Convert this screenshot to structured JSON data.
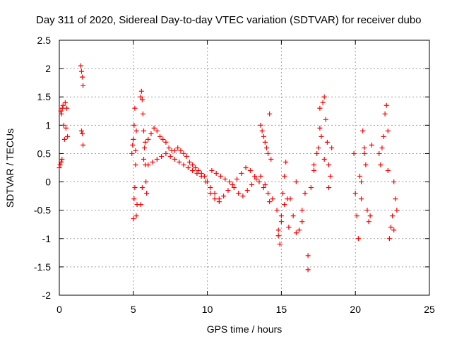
{
  "chart_data": {
    "type": "scatter",
    "title": "Day 311 of 2020, Sidereal Day-to-day VTEC variation (SDTVAR) for receiver dubo",
    "xlabel": "GPS time / hours",
    "ylabel": "SDTVAR / TECUs",
    "xlim": [
      0,
      25
    ],
    "ylim": [
      -2,
      2.5
    ],
    "xticks": [
      0,
      5,
      10,
      15,
      20,
      25
    ],
    "xtick_labels": [
      "0",
      "5",
      "10",
      "15",
      "20",
      "25"
    ],
    "yticks": [
      -2,
      -1.5,
      -1,
      -0.5,
      0,
      0.5,
      1,
      1.5,
      2,
      2.5
    ],
    "ytick_labels": [
      "-2",
      "-1.5",
      "-1",
      "-0.5",
      "0",
      "0.5",
      "1",
      "1.5",
      "2",
      "2.5"
    ],
    "grid": true,
    "marker": "+",
    "color": "#ff0000",
    "series": [
      {
        "name": "SDTVAR",
        "x": [
          0.0,
          0.05,
          0.1,
          0.12,
          0.15,
          0.18,
          0.2,
          0.25,
          0.3,
          0.35,
          0.4,
          0.45,
          0.5,
          0.55,
          1.45,
          1.5,
          1.55,
          1.6,
          1.5,
          1.55,
          1.6,
          4.9,
          4.95,
          5.0,
          5.05,
          5.1,
          5.15,
          5.2,
          5.25,
          5.0,
          5.05,
          5.1,
          5.15,
          5.2,
          5.5,
          5.55,
          5.6,
          5.65,
          5.7,
          5.75,
          5.8,
          5.85,
          5.9,
          5.5,
          5.6,
          5.7,
          5.8,
          6.0,
          6.2,
          6.4,
          6.6,
          6.8,
          7.0,
          7.2,
          7.4,
          7.6,
          7.8,
          8.0,
          8.2,
          8.4,
          8.6,
          8.8,
          9.0,
          9.2,
          9.4,
          9.6,
          9.8,
          10.0,
          6.0,
          6.3,
          6.6,
          6.9,
          7.2,
          7.5,
          7.8,
          8.1,
          8.4,
          8.7,
          9.0,
          9.3,
          9.6,
          9.9,
          10.2,
          10.5,
          10.8,
          10.2,
          10.5,
          10.8,
          11.1,
          11.4,
          11.7,
          12.0,
          12.3,
          12.6,
          12.9,
          13.2,
          13.5,
          13.8,
          14.1,
          14.4,
          10.3,
          10.6,
          10.9,
          11.2,
          11.5,
          11.8,
          12.1,
          12.4,
          12.7,
          13.0,
          13.3,
          13.6,
          13.9,
          14.2,
          13.6,
          13.7,
          13.8,
          13.9,
          14.0,
          14.1,
          14.2,
          14.3,
          14.7,
          14.8,
          14.9,
          15.0,
          15.1,
          15.2,
          15.3,
          15.4,
          15.5,
          14.8,
          15.0,
          15.2,
          15.6,
          15.8,
          16.0,
          16.2,
          16.4,
          16.6,
          16.8,
          17.0,
          17.2,
          17.4,
          16.0,
          16.4,
          16.8,
          17.2,
          17.5,
          17.6,
          17.7,
          17.8,
          17.9,
          18.0,
          18.1,
          18.2,
          18.3,
          18.4,
          17.6,
          17.9,
          18.2,
          19.9,
          20.0,
          20.1,
          20.2,
          20.3,
          20.4,
          20.5,
          20.6,
          20.7,
          20.8,
          20.9,
          21.0,
          21.1,
          20.4,
          20.6,
          21.6,
          21.7,
          21.8,
          21.9,
          22.0,
          22.1,
          22.2,
          22.3,
          22.4,
          22.5,
          22.6,
          22.7,
          22.8,
          22.2,
          22.6
        ],
        "y": [
          0.25,
          0.3,
          1.25,
          0.35,
          1.2,
          0.4,
          1.3,
          1.35,
          1.0,
          0.75,
          1.4,
          0.95,
          1.3,
          0.8,
          2.05,
          1.95,
          1.85,
          1.7,
          0.9,
          0.85,
          0.65,
          0.5,
          0.65,
          0.75,
          1.0,
          1.3,
          0.55,
          -0.6,
          -0.4,
          -0.65,
          -0.3,
          -0.1,
          0.3,
          0.9,
          1.5,
          1.6,
          1.45,
          1.2,
          0.9,
          0.6,
          0.3,
          0.0,
          -0.2,
          -0.4,
          -0.1,
          0.4,
          0.7,
          0.75,
          0.85,
          0.95,
          0.9,
          0.8,
          0.75,
          0.7,
          0.6,
          0.55,
          0.55,
          0.6,
          0.55,
          0.5,
          0.45,
          0.35,
          0.3,
          0.25,
          0.2,
          0.15,
          0.1,
          0.0,
          0.3,
          0.35,
          0.4,
          0.45,
          0.5,
          0.45,
          0.4,
          0.35,
          0.3,
          0.25,
          0.2,
          0.15,
          0.1,
          0.0,
          -0.1,
          -0.2,
          -0.3,
          -0.2,
          -0.3,
          -0.35,
          -0.25,
          -0.15,
          -0.05,
          0.05,
          0.15,
          0.25,
          0.2,
          0.1,
          0.0,
          -0.1,
          -0.2,
          -0.3,
          0.2,
          0.15,
          0.1,
          0.05,
          0.0,
          -0.1,
          -0.2,
          -0.25,
          -0.15,
          -0.05,
          0.05,
          0.1,
          -0.05,
          -0.35,
          1.0,
          0.9,
          0.8,
          0.7,
          0.6,
          0.5,
          1.2,
          0.4,
          -0.5,
          -0.85,
          -1.1,
          -0.6,
          -0.2,
          0.1,
          0.35,
          -0.3,
          -0.8,
          -0.95,
          -0.7,
          -0.4,
          -0.3,
          -0.6,
          -0.9,
          -0.85,
          -0.5,
          -0.2,
          -1.55,
          -0.1,
          0.2,
          0.5,
          0.0,
          -0.7,
          -1.3,
          0.3,
          0.6,
          1.3,
          0.8,
          1.4,
          1.5,
          1.1,
          0.7,
          0.3,
          0.1,
          0.6,
          0.95,
          0.4,
          -0.1,
          0.5,
          -0.2,
          -0.6,
          -1.0,
          0.1,
          -0.3,
          0.9,
          0.6,
          0.3,
          -0.5,
          -0.7,
          -0.6,
          0.65,
          0.0,
          0.5,
          0.5,
          0.3,
          0.6,
          0.8,
          1.2,
          1.35,
          0.9,
          -1.0,
          -0.8,
          -0.6,
          -0.85,
          -0.3,
          -0.5,
          0.2,
          0.0
        ]
      }
    ]
  }
}
